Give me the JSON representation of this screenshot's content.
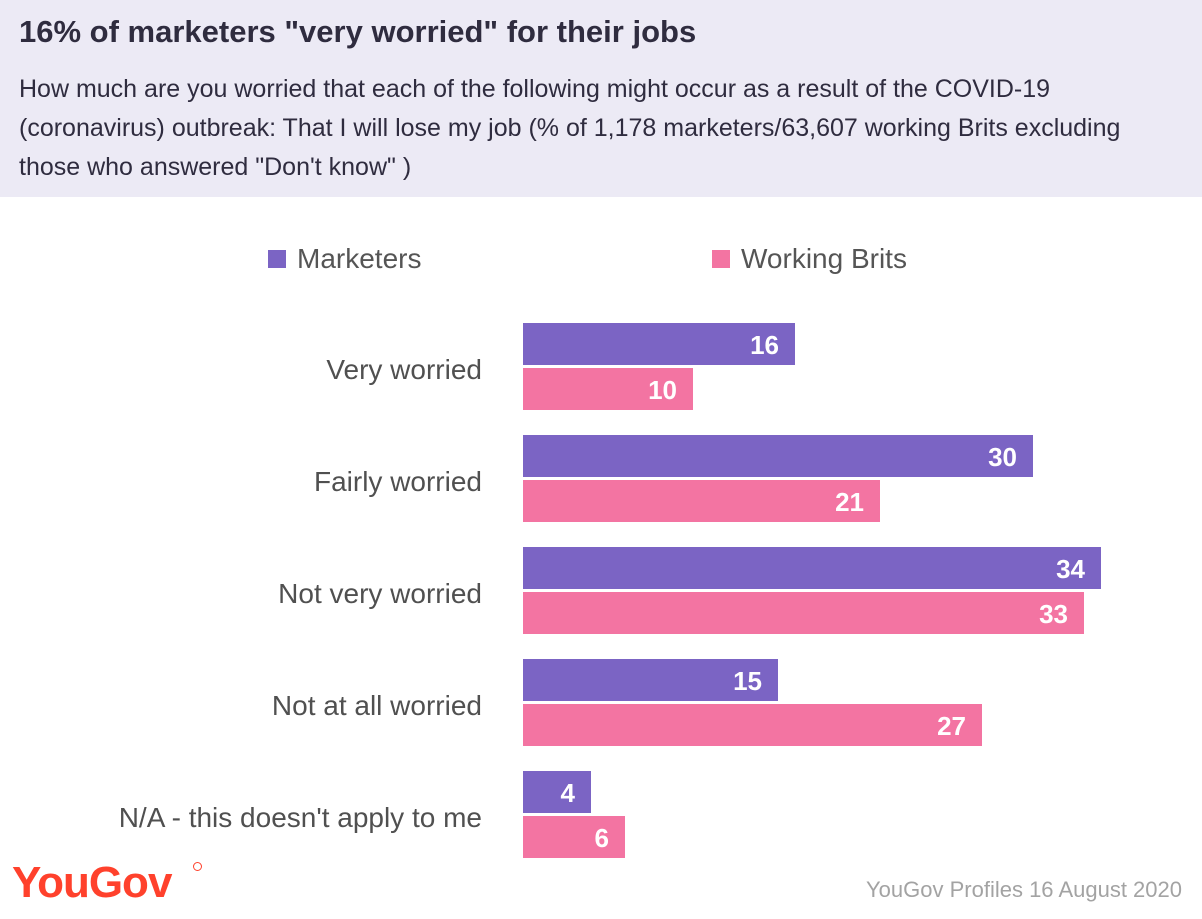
{
  "header": {
    "title": "16% of marketers \"very worried\" for their jobs",
    "subtitle": "How much are you worried that each of the following might occur as a result of the COVID-19 (coronavirus) outbreak: That I will lose my job (% of 1,178 marketers/63,607 working Brits excluding those who answered \"Don't know\" )"
  },
  "chart_data": {
    "type": "bar",
    "orientation": "horizontal",
    "categories": [
      "Very worried",
      "Fairly worried",
      "Not very worried",
      "Not at all worried",
      "N/A - this doesn't apply to me"
    ],
    "series": [
      {
        "name": "Marketers",
        "color": "#7b64c4",
        "values": [
          16,
          30,
          34,
          15,
          4
        ]
      },
      {
        "name": "Working Brits",
        "color": "#f374a2",
        "values": [
          10,
          21,
          33,
          27,
          6
        ]
      }
    ],
    "legend_position": "top",
    "grid": false,
    "data_labels": true
  },
  "footer": {
    "logo": "YouGov",
    "source": "YouGov Profiles 16 August 2020"
  }
}
